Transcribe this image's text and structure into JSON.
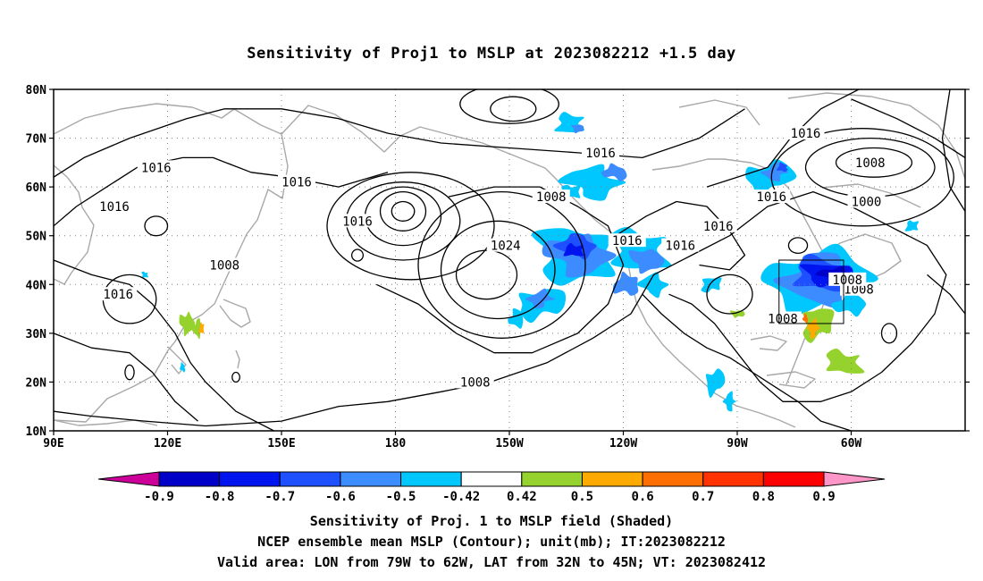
{
  "title": "Sensitivity of Proj1 to MSLP at 2023082212 +1.5 day",
  "lat_labels": [
    "80N",
    "70N",
    "60N",
    "50N",
    "40N",
    "30N",
    "20N",
    "10N"
  ],
  "lon_labels": [
    "90E",
    "120E",
    "150E",
    "180",
    "150W",
    "120W",
    "90W",
    "60W"
  ],
  "contour_labels": [
    {
      "text": "1016",
      "lon": 106,
      "lat": 56
    },
    {
      "text": "1016",
      "lon": 107,
      "lat": 38
    },
    {
      "text": "1016",
      "lon": 117,
      "lat": 64
    },
    {
      "text": "1016",
      "lon": 154,
      "lat": 61
    },
    {
      "text": "1008",
      "lon": 135,
      "lat": 44
    },
    {
      "text": "1016",
      "lon": 170,
      "lat": 53
    },
    {
      "text": "1016",
      "lon": 234,
      "lat": 67
    },
    {
      "text": "1008",
      "lon": 221,
      "lat": 58
    },
    {
      "text": "1024",
      "lon": 209,
      "lat": 48
    },
    {
      "text": "1016",
      "lon": 241,
      "lat": 49
    },
    {
      "text": "1016",
      "lon": 265,
      "lat": 52
    },
    {
      "text": "1016",
      "lon": 255,
      "lat": 48
    },
    {
      "text": "1008",
      "lon": 282,
      "lat": 33
    },
    {
      "text": "1008",
      "lon": 302,
      "lat": 39
    },
    {
      "text": "1016",
      "lon": 288,
      "lat": 71
    },
    {
      "text": "1008",
      "lon": 305,
      "lat": 65
    },
    {
      "text": "1000",
      "lon": 304,
      "lat": 57
    },
    {
      "text": "1016",
      "lon": 279,
      "lat": 58
    },
    {
      "text": "1008",
      "lon": 299,
      "lat": 41
    },
    {
      "text": "1008",
      "lon": 201,
      "lat": 20
    }
  ],
  "colorbar": {
    "labels": [
      "-0.9",
      "-0.8",
      "-0.7",
      "-0.6",
      "-0.5",
      "-0.42",
      "0.42",
      "0.5",
      "0.6",
      "0.7",
      "0.8",
      "0.9"
    ],
    "colors": [
      "#cc0099",
      "#0000c8",
      "#0014f0",
      "#1e50ff",
      "#3c8cff",
      "#00c8ff",
      "#ffffff",
      "#96d22d",
      "#ffaa00",
      "#ff6e00",
      "#ff3200",
      "#ff0000",
      "#ff96c8"
    ]
  },
  "valid_area": {
    "lon_min": -79,
    "lon_max": -62,
    "lat_min": 32,
    "lat_max": 45
  },
  "captions": [
    "Sensitivity of Proj. 1 to MSLP field (Shaded)",
    "NCEP ensemble mean MSLP (Contour); unit(mb); IT:2023082212",
    "Valid area: LON from 79W to 62W, LAT from 32N to 45N; VT: 2023082412"
  ]
}
